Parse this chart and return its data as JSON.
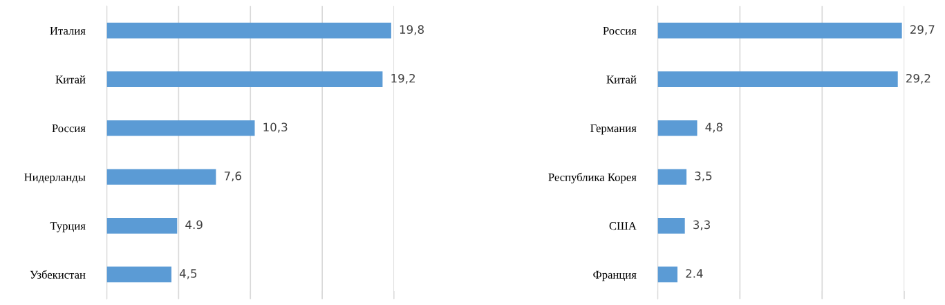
{
  "chart_data": [
    {
      "type": "bar",
      "orientation": "horizontal",
      "categories": [
        "Италия",
        "Китай",
        "Россия",
        "Нидерланды",
        "Турция",
        "Узбекистан"
      ],
      "values": [
        19.8,
        19.2,
        10.3,
        7.6,
        4.9,
        4.5
      ],
      "value_labels": [
        "19,8",
        "19,2",
        "10,3",
        "7,6",
        "4.9",
        "4,5"
      ],
      "color": "#5b9bd5",
      "xlim": [
        0,
        20
      ],
      "xticks": [
        {
          "value": 0,
          "label": null
        },
        {
          "value": 5,
          "label": null
        },
        {
          "value": 10,
          "label": null
        },
        {
          "value": 15,
          "label": null
        },
        {
          "value": 20,
          "label": null
        }
      ],
      "grid": "x",
      "tick_labels": "y",
      "legend": false
    },
    {
      "type": "bar",
      "orientation": "horizontal",
      "categories": [
        "Россия",
        "Китай",
        "Германия",
        "Республика Корея",
        "США",
        "Франция"
      ],
      "values": [
        29.7,
        29.2,
        4.8,
        3.5,
        3.3,
        2.4
      ],
      "value_labels": [
        "29,7",
        "29,2",
        "4,8",
        "3,5",
        "3,3",
        "2.4"
      ],
      "color": "#5b9bd5",
      "xlim": [
        0,
        30
      ],
      "xticks": [
        {
          "value": 0,
          "label": null
        },
        {
          "value": 10,
          "label": null
        },
        {
          "value": 20,
          "label": null
        },
        {
          "value": 30,
          "label": null
        }
      ],
      "grid": "x",
      "tick_labels": "y",
      "legend": false
    }
  ]
}
